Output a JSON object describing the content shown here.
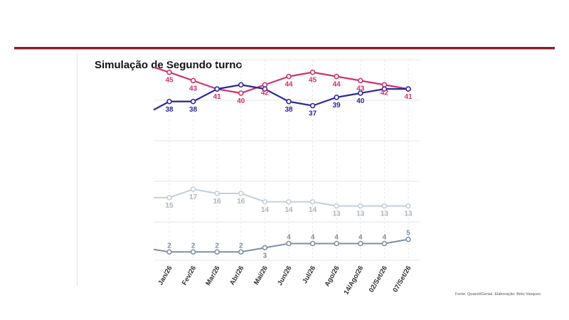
{
  "chart_data": {
    "type": "line",
    "title": "Simulação de Segundo turno",
    "source": "Fonte: Quaest/Genial. Elaboração: Beto Vasques",
    "categories": [
      "Jan/26",
      "Fev/26",
      "Mar/26",
      "Abr/26",
      "Mai/26",
      "Jun/26",
      "Jul/26",
      "Ago/26",
      "14/Ago/26",
      "02/Set/26",
      "07/Set/26"
    ],
    "series": [
      {
        "color": "#d0336c",
        "values": [
          45,
          43,
          41,
          40,
          42,
          44,
          45,
          44,
          43,
          42,
          41
        ],
        "labels": [
          "45",
          "43",
          "41",
          "40",
          "42",
          "44",
          "45",
          "44",
          "43",
          "42",
          "41"
        ]
      },
      {
        "color": "#2e2a9a",
        "values": [
          38,
          38,
          41,
          42,
          41,
          38,
          37,
          39,
          40,
          41,
          41
        ],
        "labels": [
          "38",
          "38",
          "",
          "",
          "",
          "38",
          "37",
          "39",
          "40",
          "",
          ""
        ]
      },
      {
        "color": "#c5cfd8",
        "label_color": "#aab5bf",
        "values": [
          15,
          17,
          16,
          16,
          14,
          14,
          14,
          13,
          13,
          13,
          13
        ],
        "labels": [
          "15",
          "17",
          "16",
          "16",
          "14",
          "14",
          "14",
          "13",
          "13",
          "13",
          "13"
        ]
      },
      {
        "color": "#7f8fa3",
        "label_color": "#7f8fa3",
        "values": [
          2,
          2,
          2,
          2,
          3,
          4,
          4,
          4,
          4,
          4,
          5
        ],
        "labels": [
          "2",
          "2",
          "2",
          "2",
          "3",
          "4",
          "4",
          "4",
          "4",
          "4",
          "5"
        ]
      }
    ],
    "ylim": [
      0,
      48
    ],
    "grid": true
  }
}
